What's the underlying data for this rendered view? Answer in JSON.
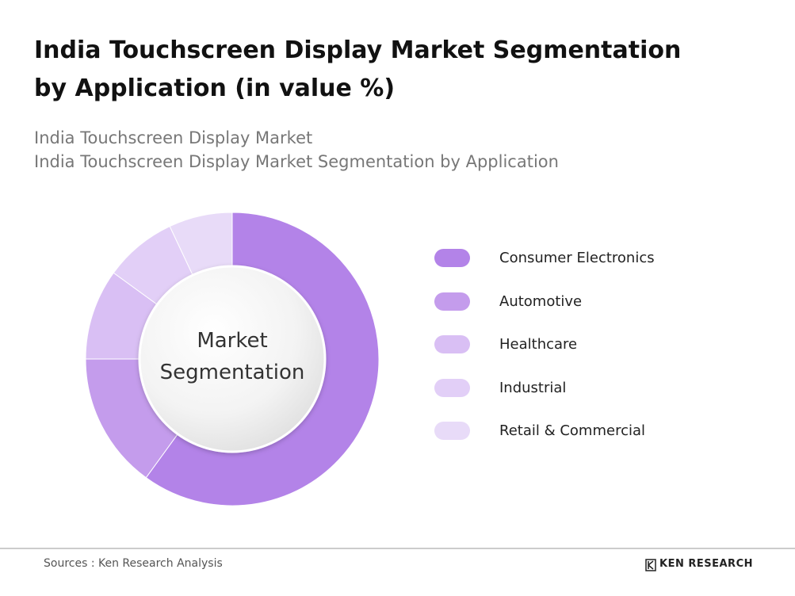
{
  "chart_data": {
    "type": "pie",
    "title": "India Touchscreen Display Market Segmentation by Application (in value %)",
    "subtitles": [
      "India Touchscreen Display Market",
      "India Touchscreen Display Market Segmentation by Application"
    ],
    "center_label": "Market Segmentation",
    "categories": [
      "Consumer Electronics",
      "Automotive",
      "Healthcare",
      "Industrial",
      "Retail & Commercial"
    ],
    "values": [
      60,
      15,
      10,
      8,
      7
    ],
    "colors": [
      "#b383e8",
      "#c49cec",
      "#d9bff4",
      "#e2cff7",
      "#e8dbf8"
    ]
  },
  "footer": {
    "source": "Sources : Ken Research Analysis",
    "brand": "KEN RESEARCH"
  }
}
